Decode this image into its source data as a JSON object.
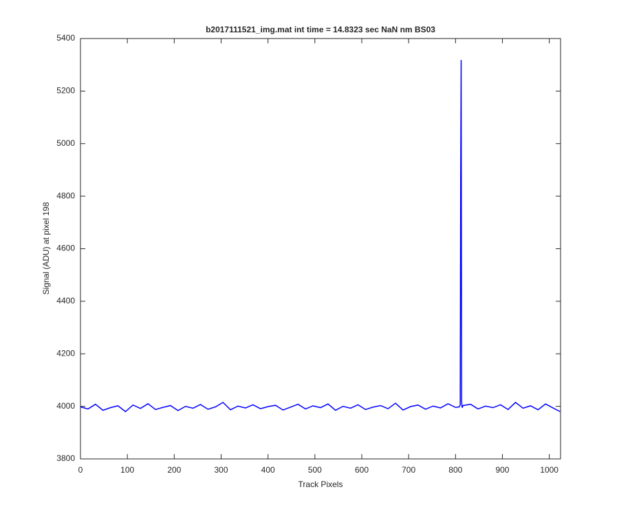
{
  "chart_data": {
    "type": "line",
    "title": "b2017111521_img.mat int time = 14.8323 sec  NaN nm BS03",
    "x_label": "Track Pixels",
    "y_label": "Signal (ADU) at pixel 198",
    "xlim": [
      0,
      1024
    ],
    "ylim": [
      3800,
      5400
    ],
    "xticks": [
      0,
      100,
      200,
      300,
      400,
      500,
      600,
      700,
      800,
      900,
      1000
    ],
    "yticks": [
      3800,
      4000,
      4200,
      4400,
      4600,
      4800,
      5000,
      5200,
      5400
    ],
    "grid": false,
    "x": [
      0,
      16,
      32,
      48,
      64,
      80,
      96,
      112,
      128,
      144,
      160,
      176,
      192,
      208,
      224,
      240,
      256,
      272,
      288,
      304,
      320,
      336,
      352,
      368,
      384,
      400,
      416,
      432,
      448,
      464,
      480,
      496,
      512,
      528,
      544,
      560,
      576,
      592,
      608,
      624,
      640,
      656,
      672,
      688,
      704,
      720,
      736,
      752,
      768,
      784,
      800,
      808,
      810,
      811,
      812,
      813,
      814,
      816,
      832,
      848,
      864,
      880,
      896,
      912,
      928,
      944,
      960,
      976,
      992,
      1008,
      1023
    ],
    "series": [
      {
        "color": "#0000ff",
        "values": [
          3998,
          3990,
          4008,
          3985,
          3995,
          4002,
          3980,
          4005,
          3992,
          4010,
          3988,
          3996,
          4003,
          3984,
          4000,
          3993,
          4007,
          3989,
          3998,
          4015,
          3987,
          4001,
          3994,
          4006,
          3991,
          3999,
          4004,
          3986,
          3997,
          4008,
          3990,
          4002,
          3995,
          4009,
          3985,
          4000,
          3993,
          4006,
          3988,
          3997,
          4003,
          3991,
          4012,
          3986,
          3999,
          4005,
          3989,
          4001,
          3994,
          4010,
          3996,
          3998,
          4005,
          4870,
          5318,
          4020,
          3995,
          4003,
          4008,
          3990,
          4001,
          3995,
          4006,
          3988,
          4015,
          3993,
          4002,
          3987,
          4009,
          3994,
          3980
        ]
      }
    ]
  }
}
